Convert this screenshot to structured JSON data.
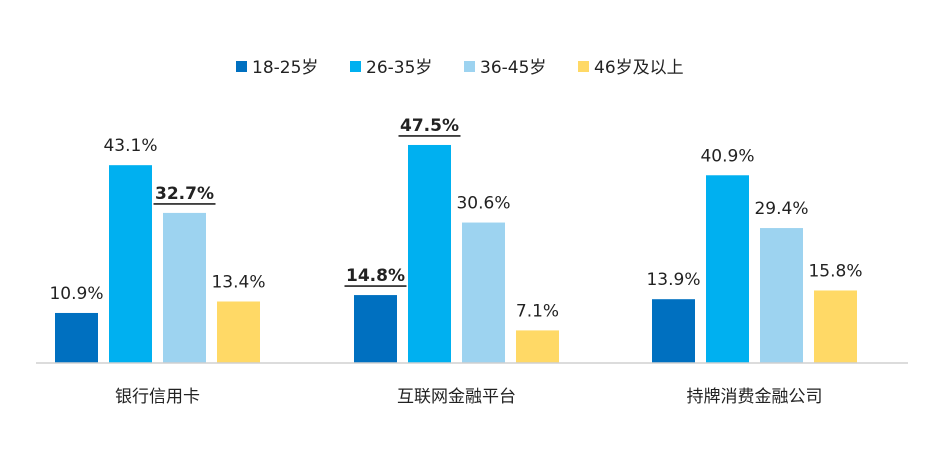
{
  "chart_data": {
    "type": "bar",
    "categories": [
      "银行信用卡",
      "互联网金融平台",
      "持牌消费金融公司"
    ],
    "series": [
      {
        "name": "18-25岁",
        "color": "#0070C0",
        "values": [
          10.9,
          14.8,
          13.9
        ],
        "labels": [
          "10.9%",
          "14.8%",
          "13.9%"
        ]
      },
      {
        "name": "26-35岁",
        "color": "#00B0F0",
        "values": [
          43.1,
          47.5,
          40.9
        ],
        "labels": [
          "43.1%",
          "47.5%",
          "40.9%"
        ]
      },
      {
        "name": "36-45岁",
        "color": "#9DD3F0",
        "values": [
          32.7,
          30.6,
          29.4
        ],
        "labels": [
          "32.7%",
          "30.6%",
          "29.4%"
        ]
      },
      {
        "name": "46岁及以上",
        "color": "#FFD966",
        "values": [
          13.4,
          7.1,
          15.8
        ],
        "labels": [
          "13.4%",
          "7.1%",
          "15.8%"
        ]
      }
    ],
    "highlighted": [
      {
        "category": "银行信用卡",
        "series": "36-45岁"
      },
      {
        "category": "互联网金融平台",
        "series": "26-35岁"
      },
      {
        "category": "互联网金融平台",
        "series": "18-25岁"
      }
    ],
    "ylim": [
      0,
      50
    ],
    "grid": false,
    "legend_position": "top"
  }
}
